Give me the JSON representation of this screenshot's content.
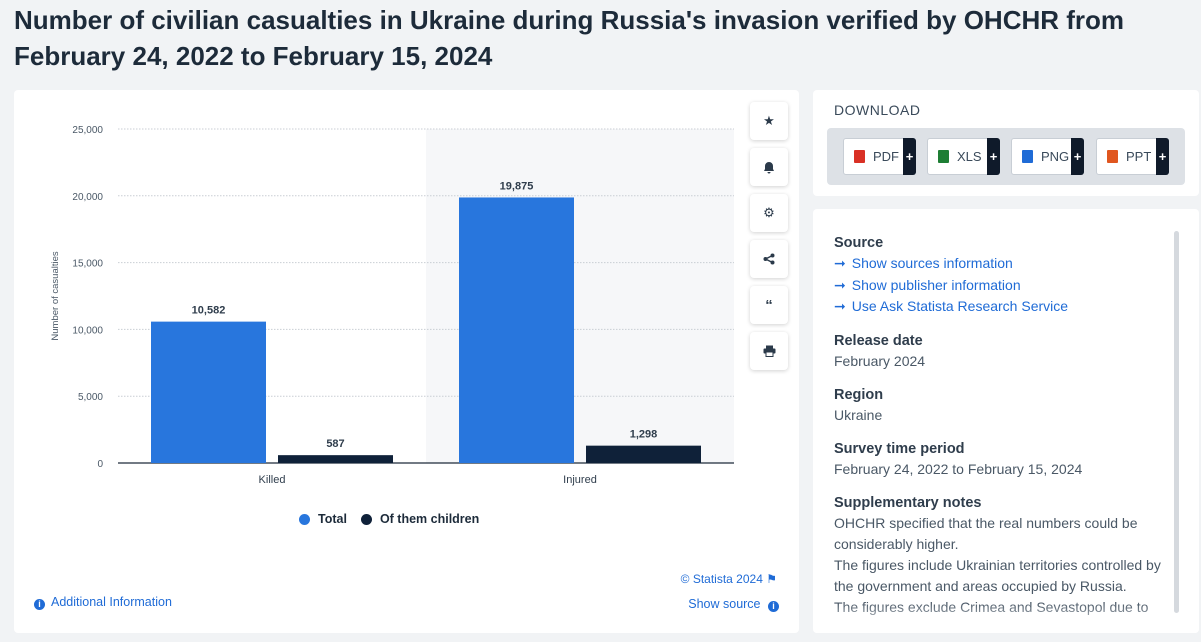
{
  "page": {
    "title": "Number of civilian casualties in Ukraine during Russia's invasion verified by OHCHR from February 24, 2022 to February 15, 2024"
  },
  "chart_data": {
    "type": "bar",
    "categories": [
      "Killed",
      "Injured"
    ],
    "series": [
      {
        "name": "Total",
        "values": [
          10582,
          19875
        ],
        "labels": [
          "10,582",
          "19,875"
        ],
        "color": "#2876dd"
      },
      {
        "name": "Of them children",
        "values": [
          587,
          1298
        ],
        "labels": [
          "587",
          "1,298"
        ],
        "color": "#0f2139"
      }
    ],
    "ylabel": "Number of casualties",
    "xlabel": "",
    "ylim": [
      0,
      25000
    ],
    "yticks": [
      0,
      5000,
      10000,
      15000,
      20000,
      25000
    ],
    "ytick_labels": [
      "0",
      "5,000",
      "10,000",
      "15,000",
      "20,000",
      "25,000"
    ],
    "grid": true,
    "legend_position": "bottom"
  },
  "chart_footer": {
    "credit": "© Statista 2024",
    "show_source": "Show source",
    "additional_info": "Additional Information"
  },
  "toolbar": {
    "icons": [
      "star-icon",
      "bell-icon",
      "gear-icon",
      "share-icon",
      "quote-icon",
      "print-icon"
    ]
  },
  "download": {
    "heading": "DOWNLOAD",
    "buttons": [
      {
        "label": "PDF",
        "color": "#d93025"
      },
      {
        "label": "XLS",
        "color": "#1e7e34"
      },
      {
        "label": "PNG",
        "color": "#1f6bd6"
      },
      {
        "label": "PPT",
        "color": "#e0561f"
      }
    ],
    "plus": "+"
  },
  "details": {
    "source_title": "Source",
    "source_links": [
      "Show sources information",
      "Show publisher information",
      "Use Ask Statista Research Service"
    ],
    "release_title": "Release date",
    "release_value": "February 2024",
    "region_title": "Region",
    "region_value": "Ukraine",
    "survey_title": "Survey time period",
    "survey_value": "February 24, 2022 to February 15, 2024",
    "notes_title": "Supplementary notes",
    "notes_1": "OHCHR specified that the real numbers could be considerably higher.",
    "notes_2": "The figures include Ukrainian territories controlled by the government and areas occupied by Russia.",
    "notes_3": "The figures exclude Crimea and Sevastopol due to"
  }
}
